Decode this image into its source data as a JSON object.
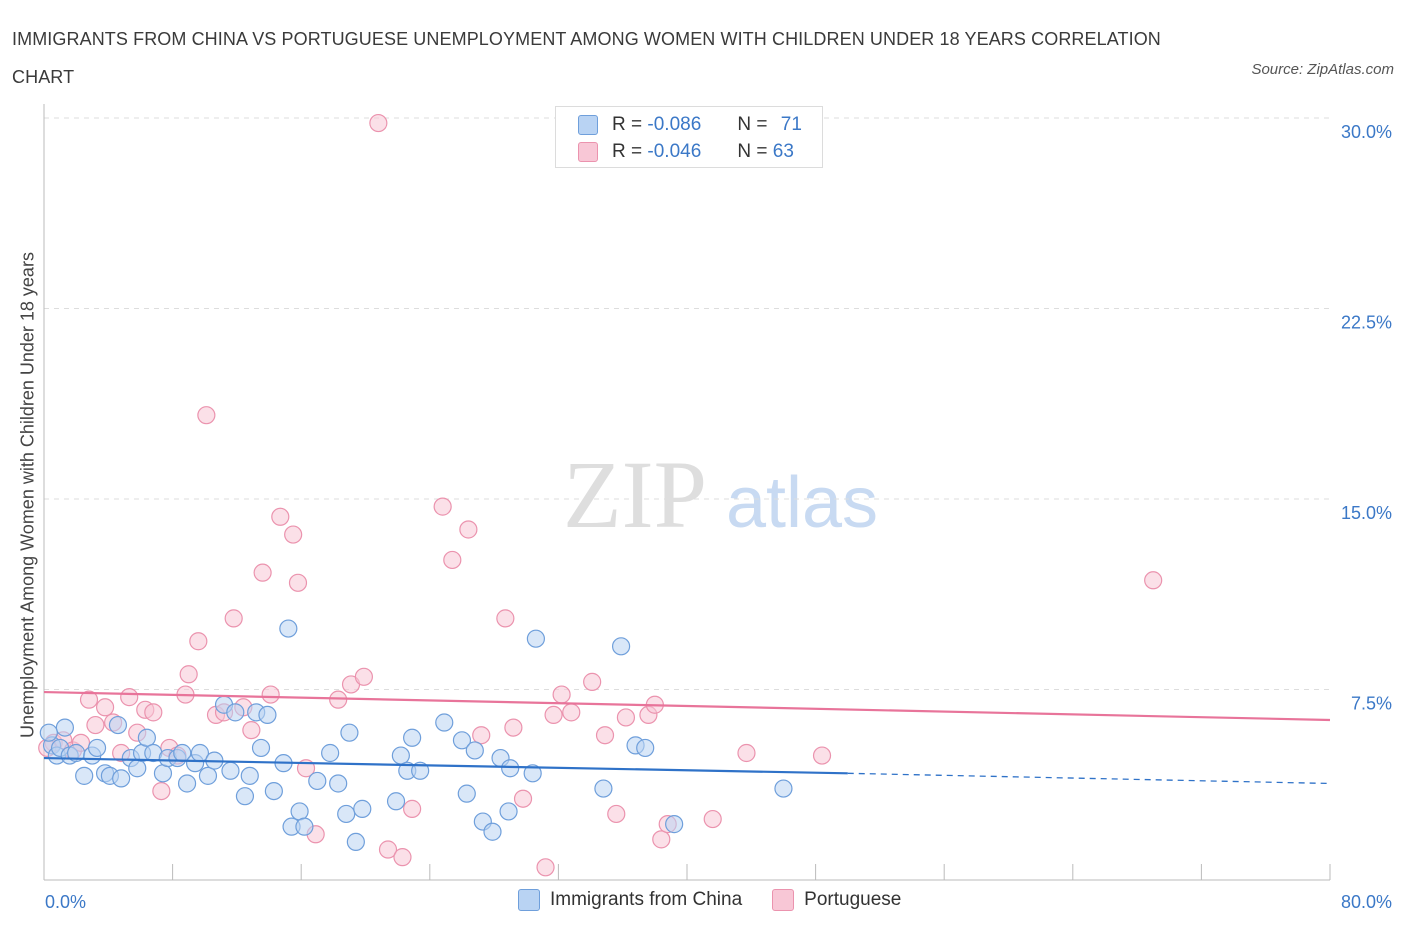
{
  "title": "IMMIGRANTS FROM CHINA VS PORTUGUESE UNEMPLOYMENT AMONG WOMEN WITH CHILDREN UNDER 18 YEARS CORRELATION CHART",
  "source": "Source: ZipAtlas.com",
  "watermark": {
    "zip": "ZIP",
    "atlas": "atlas"
  },
  "legend_top": {
    "rows": [
      {
        "r_label": "R =",
        "r_value": "-0.086",
        "n_label": "N =",
        "n_value": "71"
      },
      {
        "r_label": "R =",
        "r_value": "-0.046",
        "n_label": "N =",
        "n_value": "63"
      }
    ]
  },
  "legend_bottom": [
    "Immigrants from China",
    "Portuguese"
  ],
  "colors": {
    "china_fill": "#b9d3f3",
    "china_stroke": "#6f9fdb",
    "china_line": "#2f72c8",
    "portuguese_fill": "#f8c7d6",
    "portuguese_stroke": "#eb93ae",
    "portuguese_line": "#e8749a",
    "tick_label": "#3b78c7",
    "grid": "#dddddd"
  },
  "chart_data": {
    "type": "scatter",
    "title": "IMMIGRANTS FROM CHINA VS PORTUGUESE UNEMPLOYMENT AMONG WOMEN WITH CHILDREN UNDER 18 YEARS CORRELATION CHART",
    "xlabel": "",
    "ylabel": "Unemployment Among Women with Children Under 18 years",
    "xlim": [
      0,
      80
    ],
    "ylim": [
      0,
      30
    ],
    "y_ticks": [
      7.5,
      15.0,
      22.5,
      30.0
    ],
    "y_tick_labels": [
      "7.5%",
      "15.0%",
      "22.5%",
      "30.0%"
    ],
    "x_tick_labels": [
      "0.0%",
      "80.0%"
    ],
    "grid": "horizontal dashed",
    "legend": "top-center",
    "series": [
      {
        "name": "Immigrants from China",
        "R": -0.086,
        "N": 71,
        "trend": {
          "x0": 0,
          "y0": 4.8,
          "x1": 50,
          "y1": 4.2,
          "dashed_to_x": 80,
          "dashed_to_y": 3.8
        },
        "points": [
          [
            0.5,
            5.3
          ],
          [
            0.8,
            4.9
          ],
          [
            1.0,
            5.2
          ],
          [
            1.3,
            6.0
          ],
          [
            1.6,
            4.9
          ],
          [
            2.0,
            5.0
          ],
          [
            2.5,
            4.1
          ],
          [
            3.0,
            4.9
          ],
          [
            3.3,
            5.2
          ],
          [
            3.8,
            4.2
          ],
          [
            4.1,
            4.1
          ],
          [
            4.6,
            6.1
          ],
          [
            4.8,
            4.0
          ],
          [
            5.4,
            4.8
          ],
          [
            5.8,
            4.4
          ],
          [
            6.1,
            5.0
          ],
          [
            6.4,
            5.6
          ],
          [
            6.8,
            5.0
          ],
          [
            7.4,
            4.2
          ],
          [
            7.7,
            4.8
          ],
          [
            8.3,
            4.8
          ],
          [
            8.6,
            5.0
          ],
          [
            8.9,
            3.8
          ],
          [
            9.4,
            4.6
          ],
          [
            9.7,
            5.0
          ],
          [
            10.2,
            4.1
          ],
          [
            10.6,
            4.7
          ],
          [
            11.2,
            6.9
          ],
          [
            11.6,
            4.3
          ],
          [
            11.9,
            6.6
          ],
          [
            12.5,
            3.3
          ],
          [
            12.8,
            4.1
          ],
          [
            13.2,
            6.6
          ],
          [
            13.5,
            5.2
          ],
          [
            13.9,
            6.5
          ],
          [
            14.3,
            3.5
          ],
          [
            14.9,
            4.6
          ],
          [
            15.4,
            2.1
          ],
          [
            15.9,
            2.7
          ],
          [
            16.2,
            2.1
          ],
          [
            15.2,
            9.9
          ],
          [
            17.0,
            3.9
          ],
          [
            17.8,
            5.0
          ],
          [
            18.3,
            3.8
          ],
          [
            18.8,
            2.6
          ],
          [
            19.0,
            5.8
          ],
          [
            19.4,
            1.5
          ],
          [
            19.8,
            2.8
          ],
          [
            21.9,
            3.1
          ],
          [
            22.2,
            4.9
          ],
          [
            22.6,
            4.3
          ],
          [
            22.9,
            5.6
          ],
          [
            23.4,
            4.3
          ],
          [
            24.9,
            6.2
          ],
          [
            26.0,
            5.5
          ],
          [
            26.3,
            3.4
          ],
          [
            26.8,
            5.1
          ],
          [
            27.3,
            2.3
          ],
          [
            27.9,
            1.9
          ],
          [
            28.4,
            4.8
          ],
          [
            28.9,
            2.7
          ],
          [
            29.0,
            4.4
          ],
          [
            30.4,
            4.2
          ],
          [
            30.6,
            9.5
          ],
          [
            34.8,
            3.6
          ],
          [
            35.9,
            9.2
          ],
          [
            36.8,
            5.3
          ],
          [
            37.4,
            5.2
          ],
          [
            39.2,
            2.2
          ],
          [
            46.0,
            3.6
          ],
          [
            0.3,
            5.8
          ]
        ]
      },
      {
        "name": "Portuguese",
        "R": -0.046,
        "N": 63,
        "trend": {
          "x0": 0,
          "y0": 7.4,
          "x1": 80,
          "y1": 6.3
        },
        "points": [
          [
            0.6,
            5.4
          ],
          [
            1.2,
            5.5
          ],
          [
            1.8,
            5.1
          ],
          [
            2.3,
            5.4
          ],
          [
            2.8,
            7.1
          ],
          [
            3.2,
            6.1
          ],
          [
            3.8,
            6.8
          ],
          [
            4.3,
            6.2
          ],
          [
            4.8,
            5.0
          ],
          [
            5.3,
            7.2
          ],
          [
            5.8,
            5.8
          ],
          [
            6.3,
            6.7
          ],
          [
            6.8,
            6.6
          ],
          [
            7.3,
            3.5
          ],
          [
            7.8,
            5.2
          ],
          [
            8.3,
            4.9
          ],
          [
            8.8,
            7.3
          ],
          [
            9.0,
            8.1
          ],
          [
            9.6,
            9.4
          ],
          [
            10.1,
            18.3
          ],
          [
            10.7,
            6.5
          ],
          [
            11.2,
            6.6
          ],
          [
            11.8,
            10.3
          ],
          [
            12.4,
            6.8
          ],
          [
            12.9,
            5.9
          ],
          [
            13.6,
            12.1
          ],
          [
            14.1,
            7.3
          ],
          [
            14.7,
            14.3
          ],
          [
            15.5,
            13.6
          ],
          [
            15.8,
            11.7
          ],
          [
            16.3,
            4.4
          ],
          [
            16.9,
            1.8
          ],
          [
            18.3,
            7.1
          ],
          [
            19.1,
            7.7
          ],
          [
            19.9,
            8.0
          ],
          [
            20.8,
            29.8
          ],
          [
            21.4,
            1.2
          ],
          [
            22.3,
            0.9
          ],
          [
            22.9,
            2.8
          ],
          [
            24.8,
            14.7
          ],
          [
            25.4,
            12.6
          ],
          [
            26.4,
            13.8
          ],
          [
            27.2,
            5.7
          ],
          [
            28.7,
            10.3
          ],
          [
            29.2,
            6.0
          ],
          [
            29.8,
            3.2
          ],
          [
            31.2,
            0.5
          ],
          [
            31.7,
            6.5
          ],
          [
            32.2,
            7.3
          ],
          [
            32.8,
            6.6
          ],
          [
            34.1,
            7.8
          ],
          [
            34.9,
            5.7
          ],
          [
            35.6,
            2.6
          ],
          [
            36.2,
            6.4
          ],
          [
            37.6,
            6.5
          ],
          [
            38.0,
            6.9
          ],
          [
            38.4,
            1.6
          ],
          [
            38.8,
            2.2
          ],
          [
            41.6,
            2.4
          ],
          [
            43.7,
            5.0
          ],
          [
            48.4,
            4.9
          ],
          [
            69.0,
            11.8
          ],
          [
            0.2,
            5.2
          ]
        ]
      }
    ]
  }
}
